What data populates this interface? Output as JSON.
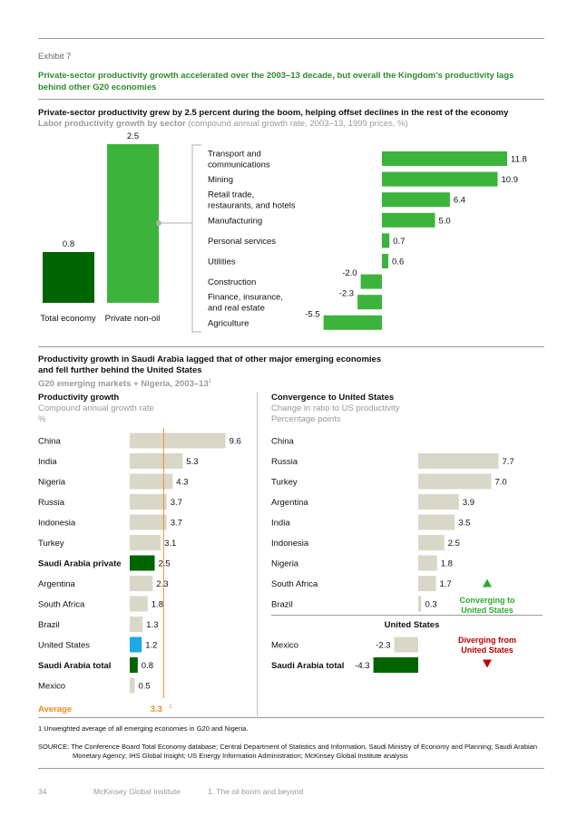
{
  "exhibit": "Exhibit 7",
  "headline": "Private-sector productivity growth accelerated over the 2003–13 decade, but overall the Kingdom’s productivity lags behind other G20 economies",
  "section1": {
    "title": "Private-sector productivity grew by 2.5 percent during the boom, helping offset declines in the rest of the economy",
    "subtitle_bold": "Labor productivity growth by sector",
    "subtitle_rest": " (compound annual growth rate, 2003–13, 1999 prices, %)"
  },
  "section2": {
    "title": "Productivity growth in Saudi Arabia lagged that of other major emerging economies and fell further behind the United States",
    "subtitle": "G20 emerging markets + Nigeria, 2003–13",
    "subtitle_sup": "1"
  },
  "chart_data": [
    {
      "id": "overall",
      "type": "bar",
      "categories": [
        "Total economy",
        "Private non-oil"
      ],
      "values": [
        0.8,
        2.5
      ],
      "value_labels": [
        "0.8",
        "2.5"
      ],
      "colors": [
        "#006400",
        "#3cb43c"
      ]
    },
    {
      "id": "sectors",
      "type": "bar",
      "orientation": "horizontal",
      "categories": [
        "Transport and communications",
        "Mining",
        "Retail trade, restaurants, and hotels",
        "Manufacturing",
        "Personal services",
        "Utilities",
        "Construction",
        "Finance, insurance, and real estate",
        "Agriculture"
      ],
      "label_lines": [
        [
          "Transport and",
          "communications"
        ],
        [
          "Mining"
        ],
        [
          "Retail trade,",
          "restaurants, and hotels"
        ],
        [
          "Manufacturing"
        ],
        [
          "Personal services"
        ],
        [
          "Utilities"
        ],
        [
          "Construction"
        ],
        [
          "Finance, insurance,",
          "and real estate"
        ],
        [
          "Agriculture"
        ]
      ],
      "values": [
        11.8,
        10.9,
        6.4,
        5.0,
        0.7,
        0.6,
        -2.0,
        -2.3,
        -5.5
      ],
      "value_labels": [
        "11.8",
        "10.9",
        "6.4",
        "5.0",
        "0.7",
        "0.6",
        "-2.0",
        "-2.3",
        "-5.5"
      ],
      "color": "#3cb43c"
    },
    {
      "id": "productivity_growth",
      "type": "bar",
      "orientation": "horizontal",
      "title": "Productivity growth",
      "subtitle": "Compound annual growth rate",
      "unit": "%",
      "categories": [
        "China",
        "India",
        "Nigeria",
        "Russia",
        "Indonesia",
        "Turkey",
        "Saudi Arabia private",
        "Argentina",
        "South Africa",
        "Brazil",
        "United States",
        "Saudi Arabia total",
        "Mexico"
      ],
      "values": [
        9.6,
        5.3,
        4.3,
        3.7,
        3.7,
        3.1,
        2.5,
        2.3,
        1.8,
        1.3,
        1.2,
        0.8,
        0.5
      ],
      "value_labels": [
        "9.6",
        "5.3",
        "4.3",
        "3.7",
        "3.7",
        "3.1",
        "2.5",
        "2.3",
        "1.8",
        "1.3",
        "1.2",
        "0.8",
        "0.5"
      ],
      "bold": [
        false,
        false,
        false,
        false,
        false,
        false,
        true,
        false,
        false,
        false,
        false,
        true,
        false
      ],
      "colors": [
        "#d9d7c8",
        "#d9d7c8",
        "#d9d7c8",
        "#d9d7c8",
        "#d9d7c8",
        "#d9d7c8",
        "#006400",
        "#d9d7c8",
        "#d9d7c8",
        "#d9d7c8",
        "#1ea8e6",
        "#006400",
        "#d9d7c8"
      ],
      "average_label": "Average",
      "average_value": 3.3,
      "average_value_label": "3.3",
      "average_sup": "1",
      "average_color": "#f08c1e"
    },
    {
      "id": "convergence",
      "type": "bar",
      "orientation": "horizontal",
      "title": "Convergence to United States",
      "subtitle": "Change in ratio to US productivity",
      "unit": "Percentage points",
      "categories": [
        "China",
        "Russia",
        "Turkey",
        "Argentina",
        "India",
        "Indonesia",
        "Nigeria",
        "South Africa",
        "Brazil",
        "Mexico",
        "Saudi Arabia total"
      ],
      "values": [
        null,
        7.7,
        7.0,
        3.9,
        3.5,
        2.5,
        1.8,
        1.7,
        0.3,
        -2.3,
        -4.3
      ],
      "value_labels": [
        "",
        "7.7",
        "7.0",
        "3.9",
        "3.5",
        "2.5",
        "1.8",
        "1.7",
        "0.3",
        "-2.3",
        "-4.3"
      ],
      "bold": [
        false,
        false,
        false,
        false,
        false,
        false,
        false,
        false,
        false,
        false,
        true
      ],
      "colors": [
        "#d9d7c8",
        "#d9d7c8",
        "#d9d7c8",
        "#d9d7c8",
        "#d9d7c8",
        "#d9d7c8",
        "#d9d7c8",
        "#d9d7c8",
        "#d9d7c8",
        "#d9d7c8",
        "#006400"
      ],
      "baseline_label": "United States",
      "converging_label": [
        "Converging to",
        "United States"
      ],
      "diverging_label": [
        "Diverging from",
        "United States"
      ],
      "converging_color": "#2eaa2e",
      "diverging_color": "#c00000"
    }
  ],
  "footnote": "1  Unweighted average of all emerging economies in G20 and Nigeria.",
  "source": "SOURCE:  The Conference Board Total Economy database; Central Department of Statistics and Information, Saudi Ministry of Economy and Planning; Saudi Arabian Monetary Agency; IHS Global Insight; US Energy Information Administration; McKinsey Global Institute analysis",
  "footer": {
    "page": "34",
    "org": "McKinsey Global Institute",
    "chapter": "1. The oil boom and beyond"
  }
}
